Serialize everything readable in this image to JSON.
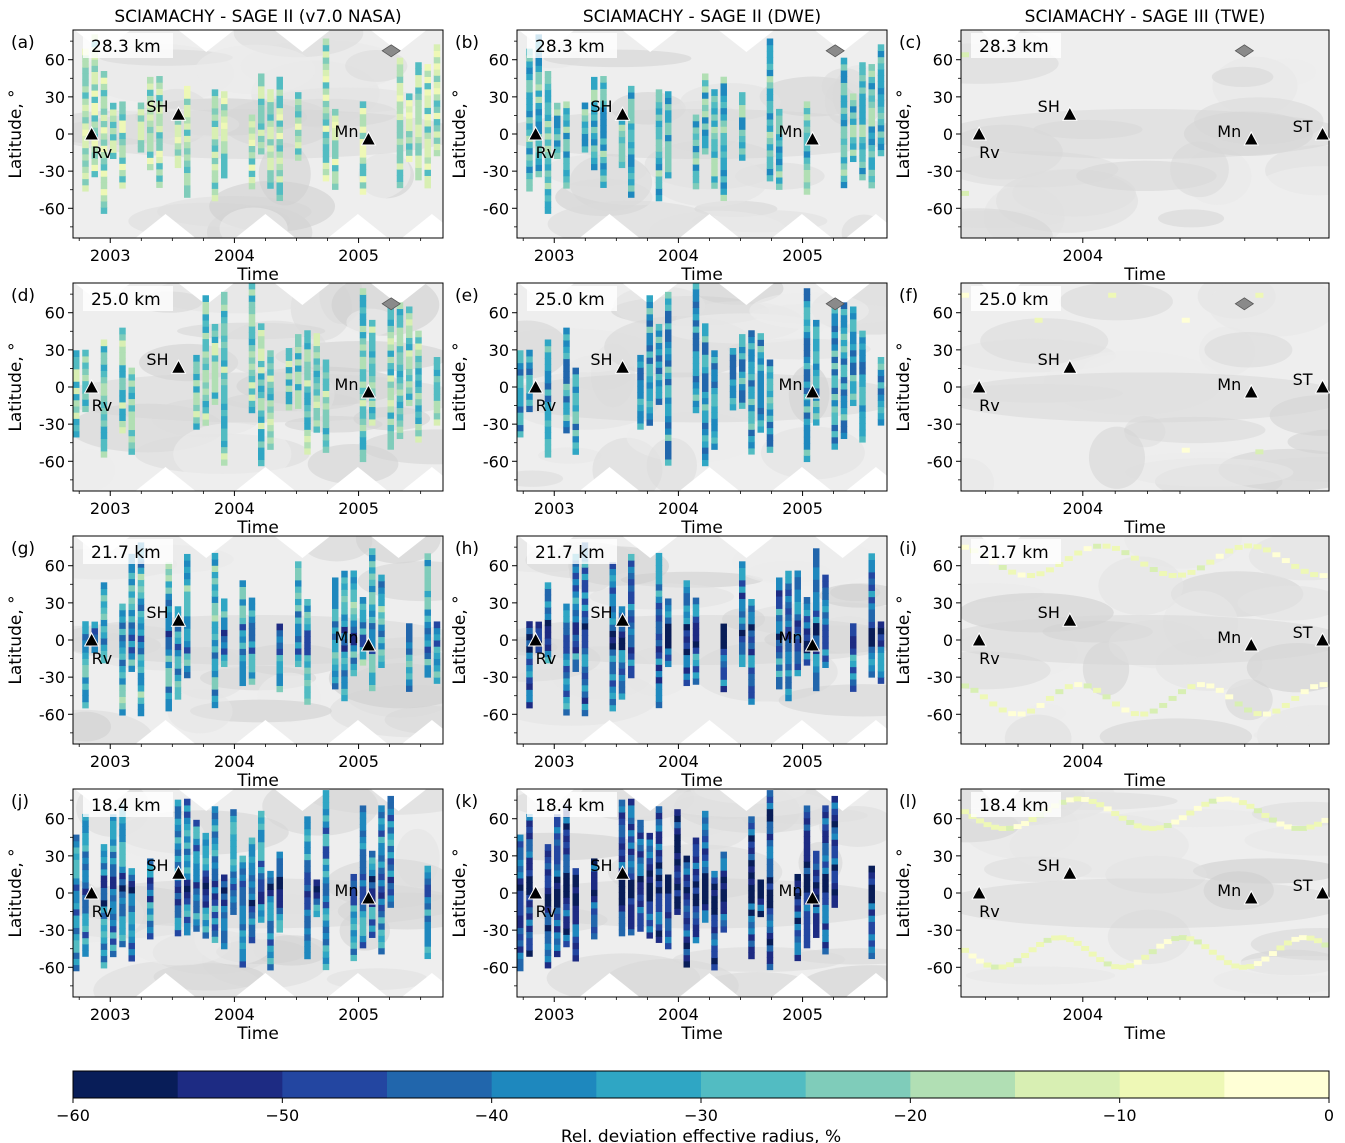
{
  "chart_data": {
    "type": "heatmap",
    "column_titles": [
      "SCIAMACHY - SAGE II (v7.0 NASA)",
      "SCIAMACHY - SAGE II (DWE)",
      "SCIAMACHY - SAGE III (TWE)"
    ],
    "xlabel": "Time",
    "ylabel": "Latitude, °",
    "ylim": [
      -84,
      84
    ],
    "yticks": [
      -60,
      -30,
      0,
      30,
      60
    ],
    "grid": false,
    "xaxes": [
      {
        "range": [
          2002.7,
          2005.68
        ],
        "ticks": [
          2003,
          2004,
          2005
        ]
      },
      {
        "range": [
          2002.7,
          2005.68
        ],
        "ticks": [
          2003,
          2004,
          2005
        ]
      },
      {
        "range": [
          2003.06,
          2005.9
        ],
        "ticks": [
          2004
        ]
      }
    ],
    "panels": [
      {
        "label": "(a)",
        "altitude": "28.3 km"
      },
      {
        "label": "(b)",
        "altitude": "28.3 km"
      },
      {
        "label": "(c)",
        "altitude": "28.3 km"
      },
      {
        "label": "(d)",
        "altitude": "25.0 km"
      },
      {
        "label": "(e)",
        "altitude": "25.0 km"
      },
      {
        "label": "(f)",
        "altitude": "25.0 km"
      },
      {
        "label": "(g)",
        "altitude": "21.7 km"
      },
      {
        "label": "(h)",
        "altitude": "21.7 km"
      },
      {
        "label": "(i)",
        "altitude": "21.7 km"
      },
      {
        "label": "(j)",
        "altitude": "18.4 km"
      },
      {
        "label": "(k)",
        "altitude": "18.4 km"
      },
      {
        "label": "(l)",
        "altitude": "18.4 km"
      }
    ],
    "volcanoes": {
      "sage2": [
        {
          "name": "Rv",
          "time": 2002.85,
          "lat": 0
        },
        {
          "name": "SH",
          "time": 2003.55,
          "lat": 16
        },
        {
          "name": "Mn",
          "time": 2005.08,
          "lat": -4
        }
      ],
      "sage3": [
        {
          "name": "Rv",
          "time": 2003.2,
          "lat": 0
        },
        {
          "name": "SH",
          "time": 2003.9,
          "lat": 16
        },
        {
          "name": "Mn",
          "time": 2005.3,
          "lat": -4
        },
        {
          "name": "ST",
          "time": 2005.85,
          "lat": 0
        }
      ]
    },
    "colorbar": {
      "label": "Rel. deviation effective radius, %",
      "range": [
        -60,
        0
      ],
      "ticks": [
        -60,
        -50,
        -40,
        -30,
        -20,
        -10,
        0
      ],
      "tick_labels": [
        "−60",
        "−50",
        "−40",
        "−30",
        "−20",
        "−10",
        "0"
      ],
      "colors": [
        "#081d58",
        "#1d2b83",
        "#2346a1",
        "#2166ac",
        "#1e88be",
        "#2fa6c4",
        "#52bcc2",
        "#7fccba",
        "#b1dfb4",
        "#d8efb3",
        "#eef8b6",
        "#ffffd6"
      ]
    }
  }
}
